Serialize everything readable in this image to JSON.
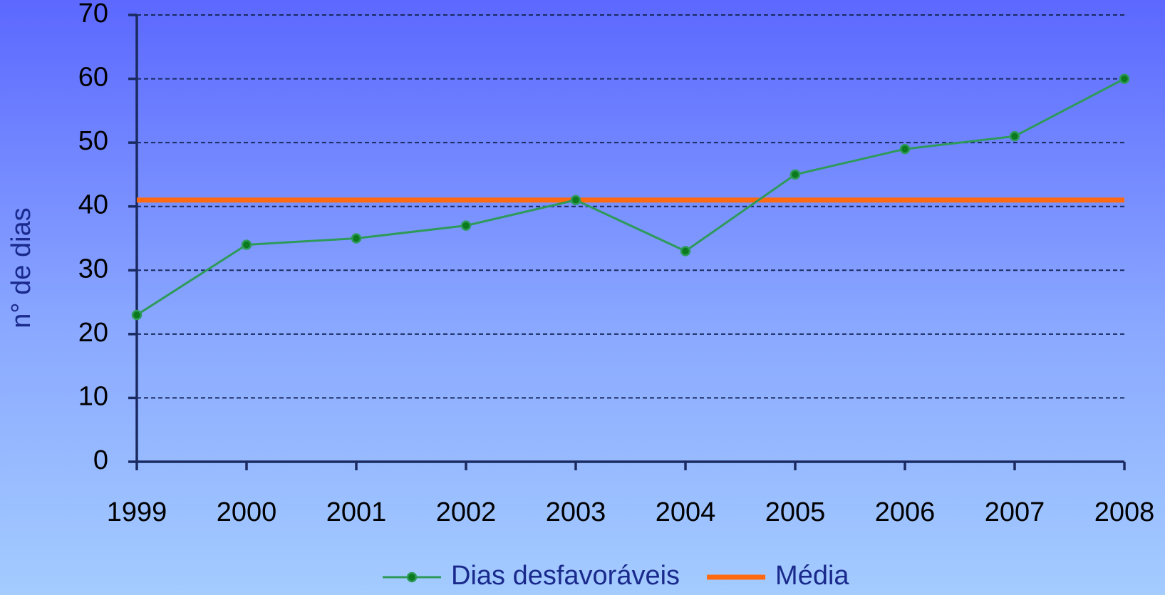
{
  "chart_data": {
    "type": "line",
    "y_label": "n° de dias",
    "categories": [
      "1999",
      "2000",
      "2001",
      "2002",
      "2003",
      "2004",
      "2005",
      "2006",
      "2007",
      "2008"
    ],
    "series": [
      {
        "name": "Dias desfavoráveis",
        "color": "#2e9a5a",
        "markers": true,
        "values": [
          23,
          34,
          35,
          37,
          41,
          33,
          45,
          49,
          51,
          60
        ]
      },
      {
        "name": "Média",
        "color": "#ff6a10",
        "markers": false,
        "values": [
          41,
          41,
          41,
          41,
          41,
          41,
          41,
          41,
          41,
          41
        ]
      }
    ],
    "ylim": [
      0,
      70
    ],
    "yticks": [
      0,
      10,
      20,
      30,
      40,
      50,
      60,
      70
    ],
    "grid": true,
    "legend": "bottom"
  }
}
